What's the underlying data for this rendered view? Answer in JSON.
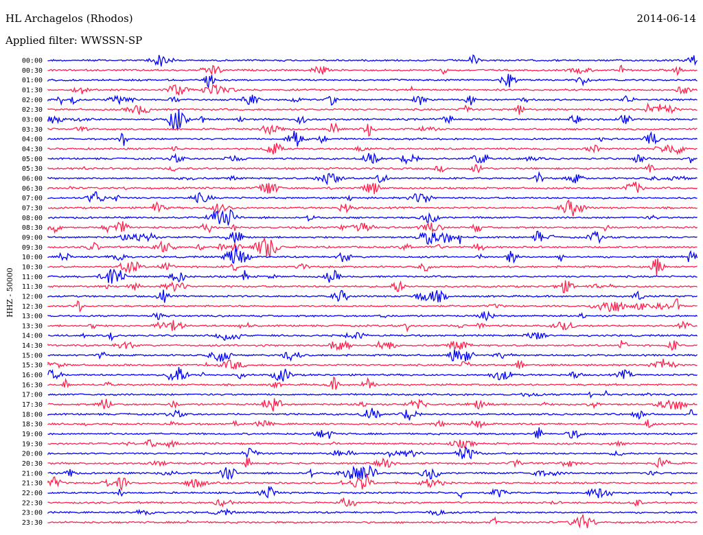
{
  "header": {
    "station": "HL Archagelos (Rhodos)",
    "date": "2014-06-14",
    "filter": "Applied filter: WWSSN-SP"
  },
  "chart_data": {
    "type": "line",
    "ylabel": "HHZ - 50000",
    "colors": {
      "odd": "#ff1f4b",
      "even": "#0000ff"
    },
    "rows": [
      "00:00",
      "00:30",
      "01:00",
      "01:30",
      "02:00",
      "02:30",
      "03:00",
      "03:30",
      "04:00",
      "04:30",
      "05:00",
      "05:30",
      "06:00",
      "06:30",
      "07:00",
      "07:30",
      "08:00",
      "08:30",
      "09:00",
      "09:30",
      "10:00",
      "10:30",
      "11:00",
      "11:30",
      "12:00",
      "12:30",
      "13:00",
      "13:30",
      "14:00",
      "14:30",
      "15:00",
      "15:30",
      "16:00",
      "16:30",
      "17:00",
      "17:30",
      "18:00",
      "18:30",
      "19:00",
      "19:30",
      "20:00",
      "20:30",
      "21:00",
      "21:30",
      "22:00",
      "22:30",
      "23:00",
      "23:30"
    ]
  }
}
